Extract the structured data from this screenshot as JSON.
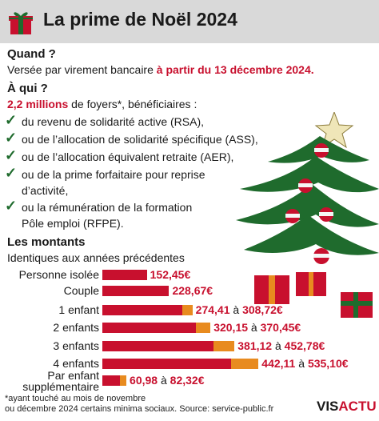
{
  "header": {
    "title": "La prime de Noël 2024",
    "icon": "gift-icon"
  },
  "quand": {
    "title": "Quand ?",
    "text_plain": "Versée par virement bancaire ",
    "text_highlight": "à partir du 13 décembre 2024."
  },
  "qui": {
    "title": "À qui ?",
    "count_highlight": "2,2 millions",
    "count_rest": " de foyers*, bénéficiaires :",
    "items": [
      {
        "lines": [
          "du revenu de solidarité active (RSA),"
        ]
      },
      {
        "lines": [
          "ou de l’allocation de solidarité spécifique (ASS),"
        ]
      },
      {
        "lines": [
          "ou de l’allocation équivalent retraite (AER),"
        ]
      },
      {
        "lines": [
          "ou de la prime forfaitaire pour reprise",
          "d’activité,"
        ]
      },
      {
        "lines": [
          "ou la rémunération de la formation",
          "Pôle emploi (RFPE)."
        ]
      }
    ]
  },
  "montants": {
    "title": "Les montants",
    "subtitle": "Identiques aux années précédentes",
    "rows": [
      {
        "label": "Personne isolée",
        "min": 152.45,
        "max": null,
        "value_min": "152,45€",
        "sep": "",
        "value_max": ""
      },
      {
        "label": "Couple",
        "min": 228.67,
        "max": null,
        "value_min": "228,67€",
        "sep": "",
        "value_max": ""
      },
      {
        "label": "1 enfant",
        "min": 274.41,
        "max": 308.72,
        "value_min": "274,41",
        "sep": " à ",
        "value_max": "308,72€"
      },
      {
        "label": "2 enfants",
        "min": 320.15,
        "max": 370.45,
        "value_min": "320,15",
        "sep": " à ",
        "value_max": "370,45€"
      },
      {
        "label": "3 enfants",
        "min": 381.12,
        "max": 452.78,
        "value_min": "381,12",
        "sep": " à ",
        "value_max": "452,78€"
      },
      {
        "label": "4 enfants",
        "min": 442.11,
        "max": 535.1,
        "value_min": "442,11",
        "sep": " à ",
        "value_max": "535,10€"
      },
      {
        "label": "Par enfant supplémentaire",
        "label_lines": [
          "Par enfant",
          "supplémentaire"
        ],
        "min": 60.98,
        "max": 82.32,
        "value_min": "60,98",
        "sep": " à ",
        "value_max": "82,32€"
      }
    ],
    "colors": {
      "min": "#c8102e",
      "range": "#e88b1f"
    }
  },
  "footnote": {
    "lines": [
      "*ayant touché au mois de novembre",
      "ou décembre 2024 certains minima sociaux. Source: service-public.fr"
    ]
  },
  "logo": {
    "part1": "VIS",
    "part2": "ACTU"
  },
  "decor": {
    "tree": "christmas-tree-icon",
    "star": "star-icon",
    "gifts": "gift-box-icon"
  }
}
